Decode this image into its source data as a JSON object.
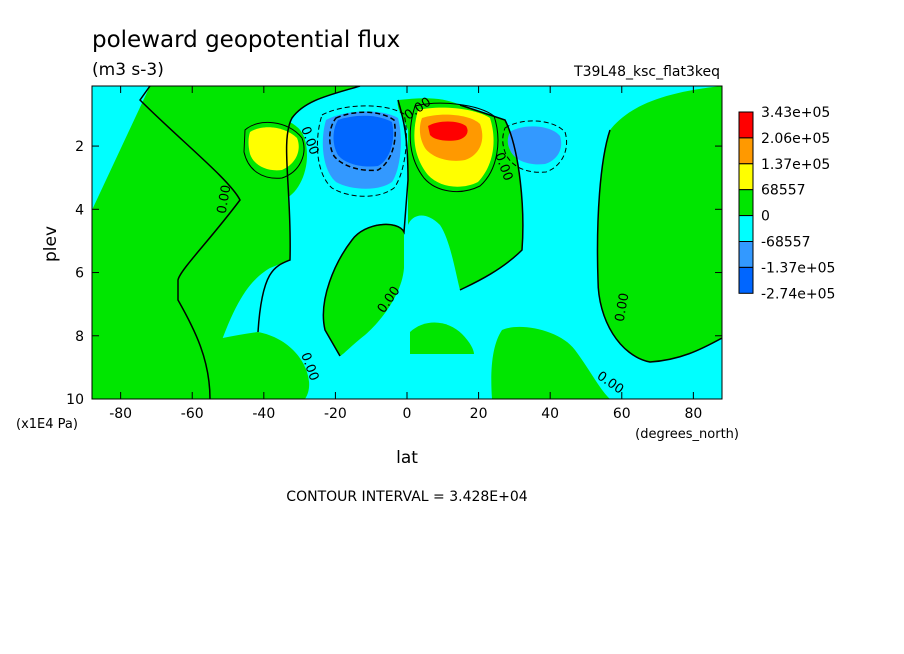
{
  "chart_data": {
    "type": "contour",
    "title": "poleward geopotential flux",
    "units": "(m3 s-3)",
    "run_label": "T39L48_ksc_flat3keq",
    "xlabel": "lat",
    "xunits": "(degrees_north)",
    "ylabel": "plev",
    "yunits": "(x1E4 Pa)",
    "xlim": [
      -88,
      88
    ],
    "ylim": [
      10,
      0.1
    ],
    "y_inverted": true,
    "x_ticks": [
      -80,
      -60,
      -40,
      -20,
      0,
      20,
      40,
      60,
      80
    ],
    "x_tick_labels": [
      "-80",
      "-60",
      "-40",
      "-20",
      "0",
      "20",
      "40",
      "60",
      "80"
    ],
    "y_ticks": [
      2,
      4,
      6,
      8,
      10
    ],
    "y_tick_labels": [
      "2",
      "4",
      "6",
      "8",
      "10"
    ],
    "contour_interval_text": "CONTOUR INTERVAL = 3.428E+04",
    "contour_line_label": "0.00",
    "legend_position": "right",
    "colorbar": [
      {
        "label": "3.43e+05",
        "color": "#ff0000"
      },
      {
        "label": "2.06e+05",
        "color": "#ff9900"
      },
      {
        "label": "1.37e+05",
        "color": "#ffff00"
      },
      {
        "label": "68557",
        "color": "#00e600"
      },
      {
        "label": "0",
        "color": "#00ffff"
      },
      {
        "label": "-68557",
        "color": "#3399ff"
      },
      {
        "label": "-1.37e+05",
        "color": "#0066ff"
      },
      {
        "label": "-2.74e+05",
        "color": null
      }
    ],
    "features": [
      {
        "kind": "positive-extremum",
        "lat": 8,
        "plev": 1.6,
        "level_class": "3.43e+05"
      },
      {
        "kind": "positive-lobe",
        "lat": -37,
        "plev": 2.0,
        "level_class": "1.37e+05"
      },
      {
        "kind": "negative-extremum",
        "lat": -12,
        "plev": 1.8,
        "level_class": "-1.37e+05"
      },
      {
        "kind": "negative-lobe",
        "lat": 37,
        "plev": 2.0,
        "level_class": "-68557"
      }
    ]
  }
}
